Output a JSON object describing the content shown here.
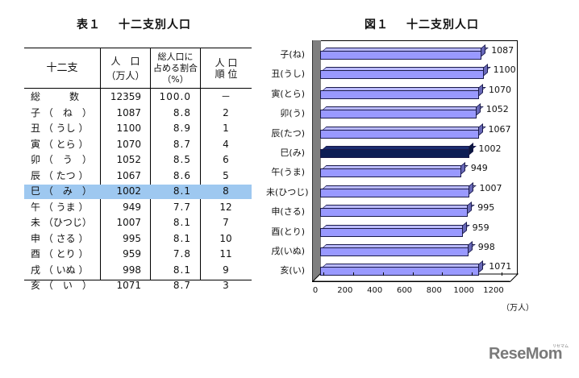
{
  "table": {
    "title_num": "表１",
    "title": "十二支別人口",
    "headers": {
      "sign": "十二支",
      "pop_line1": "人　口",
      "pop_line2": "（万人）",
      "share_line1": "総人口に",
      "share_line2": "占める割合",
      "share_line3": "（%）",
      "rank_line1": "人 口",
      "rank_line2": "順 位"
    },
    "total": {
      "name": "総　　　数",
      "population": "12359",
      "share": "100.0",
      "rank": "－"
    },
    "rows": [
      {
        "name": "子 （　ね　）",
        "population": "1087",
        "share": "8.8",
        "rank": "2"
      },
      {
        "name": "丑 （ うし ）",
        "population": "1100",
        "share": "8.9",
        "rank": "1"
      },
      {
        "name": "寅 （ とら ）",
        "population": "1070",
        "share": "8.7",
        "rank": "4"
      },
      {
        "name": "卯 （　う　）",
        "population": "1052",
        "share": "8.5",
        "rank": "6"
      },
      {
        "name": "辰 （ たつ ）",
        "population": "1067",
        "share": "8.6",
        "rank": "5"
      },
      {
        "name": "巳 （　み　）",
        "population": "1002",
        "share": "8.1",
        "rank": "8",
        "highlight": true
      },
      {
        "name": "午 （ うま ）",
        "population": "949",
        "share": "7.7",
        "rank": "12"
      },
      {
        "name": "未 （ひつじ）",
        "population": "1007",
        "share": "8.1",
        "rank": "7"
      },
      {
        "name": "申 （ さる ）",
        "population": "995",
        "share": "8.1",
        "rank": "10"
      },
      {
        "name": "酉 （ とり ）",
        "population": "959",
        "share": "7.8",
        "rank": "11"
      },
      {
        "name": "戌 （ いぬ ）",
        "population": "998",
        "share": "8.1",
        "rank": "9"
      },
      {
        "name": "亥 （　い　）",
        "population": "1071",
        "share": "8.7",
        "rank": "3"
      }
    ],
    "highlight_color": "#9ec8f0"
  },
  "chart_data": {
    "type": "bar",
    "orientation": "horizontal",
    "title": "図１　十二支別人口",
    "title_num": "図１",
    "title_text": "十二支別人口",
    "categories": [
      "子(ね)",
      "丑(うし)",
      "寅(とら)",
      "卯(う)",
      "辰(たつ)",
      "巳(み)",
      "午(うま)",
      "未(ひつじ)",
      "申(さる)",
      "酉(とり)",
      "戌(いぬ)",
      "亥(い)"
    ],
    "values": [
      1087,
      1100,
      1070,
      1052,
      1067,
      1002,
      949,
      1007,
      995,
      959,
      998,
      1071
    ],
    "highlighted_category": "巳(み)",
    "xlabel": "（万人）",
    "ylabel": "",
    "xlim": [
      0,
      1200
    ],
    "xticks": [
      "0",
      "200",
      "400",
      "600",
      "800",
      "1000",
      "1200"
    ],
    "grid": false,
    "legend": null,
    "style": "3d",
    "colors": {
      "bar": "#9999ff",
      "highlight": "#0d1e55",
      "side_wall": "#7f7f7f"
    }
  },
  "watermark": {
    "text": "ReseMom",
    "ruby": "リセマム"
  }
}
